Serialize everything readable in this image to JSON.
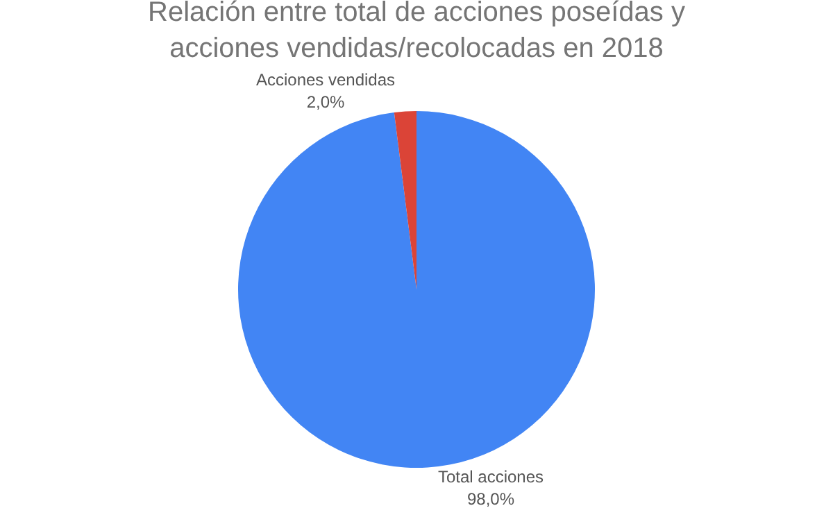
{
  "chart_data": {
    "type": "pie",
    "title": "Relación entre total de acciones poseídas y acciones vendidas/recolocadas en 2018",
    "categories": [
      "Total acciones",
      "Acciones vendidas"
    ],
    "values": [
      98.0,
      2.0
    ],
    "colors": [
      "#4285f4",
      "#db4437"
    ],
    "value_labels": [
      "98,0%",
      "2,0%"
    ],
    "legend": false
  }
}
